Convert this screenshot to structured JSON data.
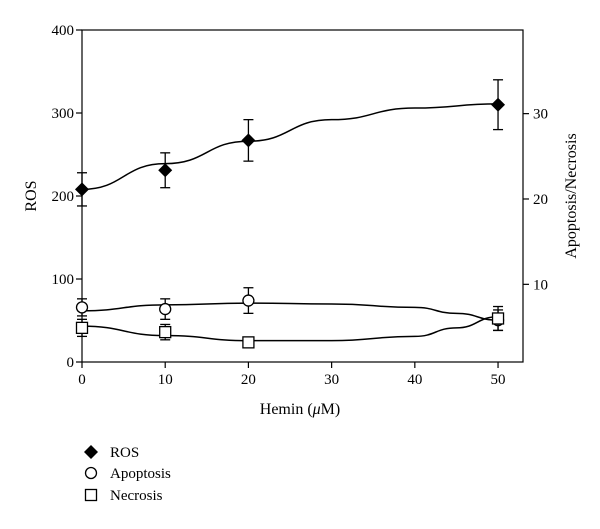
{
  "chart_data": {
    "type": "scatter",
    "xlabel": "Hemin (μM)",
    "xlabel_prefix": "Hemin (",
    "xlabel_unit": "μ",
    "xlabel_suffix": "M)",
    "ylabel_left": "ROS",
    "ylabel_right": "Apoptosis/Necrosis",
    "x_ticks": [
      0,
      10,
      20,
      30,
      40,
      50
    ],
    "y_left_ticks": [
      0,
      100,
      200,
      300,
      400
    ],
    "y_right_ticks": [
      10,
      20,
      30
    ],
    "xlim": [
      0,
      53
    ],
    "ylim_left": [
      0,
      400
    ],
    "ylim_right": [
      0.9,
      39.8
    ],
    "grid": false,
    "legend_position": "bottom-left",
    "series": [
      {
        "name": "ROS",
        "axis": "left",
        "marker": "diamond-filled",
        "x": [
          0,
          10,
          20,
          50
        ],
        "y": [
          208,
          231,
          267,
          310
        ],
        "error": [
          20,
          21,
          25,
          30
        ],
        "fit": [
          208,
          239,
          266,
          292,
          306,
          311
        ]
      },
      {
        "name": "Apoptosis",
        "axis": "right",
        "marker": "circle-open",
        "x": [
          0,
          10,
          20,
          50
        ],
        "y": [
          7.3,
          7.1,
          8.1,
          5.8
        ],
        "error": [
          1.0,
          1.2,
          1.5,
          1.2
        ],
        "fit": [
          6.9,
          7.6,
          7.8,
          7.7,
          7.3,
          6.6,
          5.8
        ]
      },
      {
        "name": "Necrosis",
        "axis": "right",
        "marker": "square-open",
        "x": [
          0,
          10,
          20,
          50
        ],
        "y": [
          4.9,
          4.4,
          3.2,
          6.0
        ],
        "error": [
          1.0,
          0.9,
          0.6,
          1.4
        ],
        "fit": [
          5.1,
          4.0,
          3.4,
          3.4,
          3.9,
          4.9,
          6.2
        ]
      }
    ]
  }
}
